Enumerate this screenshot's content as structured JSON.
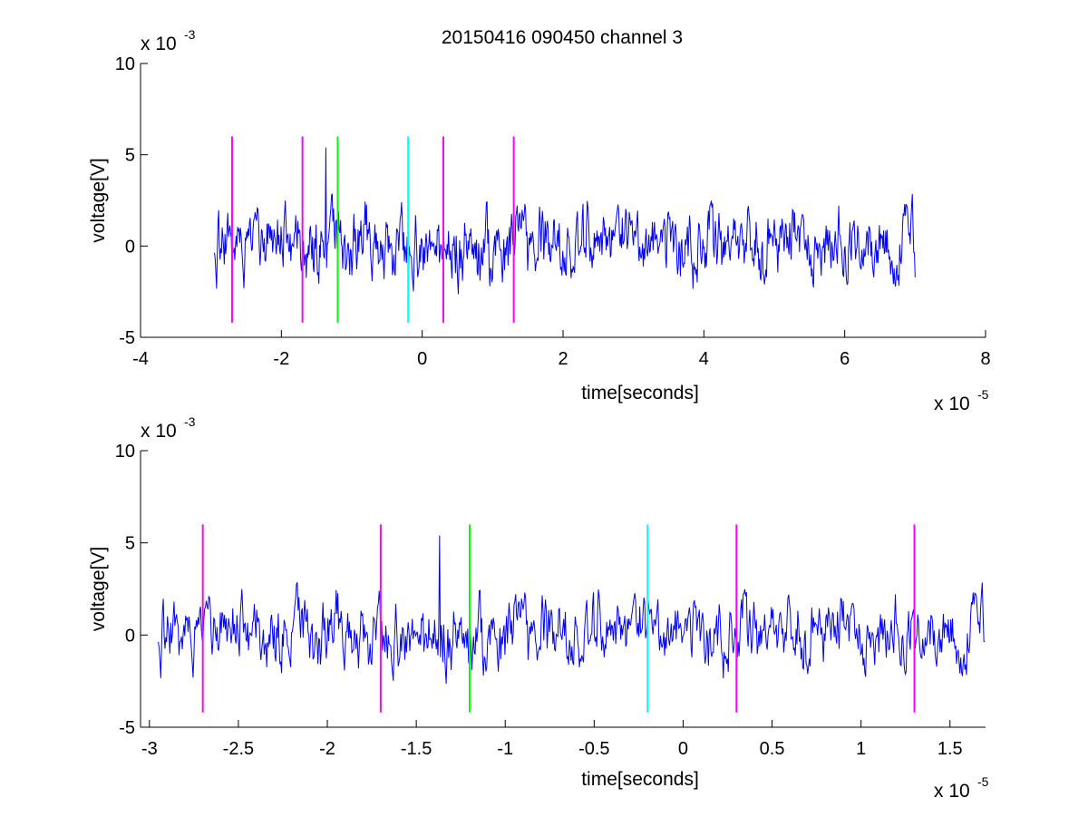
{
  "figure_title": "20150416 090450 channel 3",
  "colors": {
    "trace": "#0000ff",
    "magenta": "#ff00ff",
    "green": "#00ff00",
    "cyan": "#00ffff"
  },
  "chart_data": [
    {
      "type": "line",
      "title": "20150416 090450 channel 3",
      "xlabel": "time[seconds]",
      "ylabel": "voltage[V]",
      "x_exponent": "x 10",
      "x_exponent_power": "-5",
      "y_exponent": "x 10",
      "y_exponent_power": "-3",
      "xlim": [
        -4,
        8
      ],
      "ylim": [
        -5,
        10
      ],
      "xticks": [
        -4,
        -2,
        0,
        2,
        4,
        6,
        8
      ],
      "xtick_labels": [
        "-4",
        "-2",
        "0",
        "2",
        "4",
        "6",
        "8"
      ],
      "yticks": [
        -5,
        0,
        5,
        10
      ],
      "ytick_labels": [
        "-5",
        "0",
        "5",
        "10"
      ],
      "grid": false,
      "signal": {
        "color": "blue",
        "x_start": -2.95,
        "x_end": 7.0,
        "amplitude_range": [
          -3.8,
          5.4
        ],
        "spike_time": -1.37,
        "spike_value": 5.4
      },
      "markers": [
        {
          "x": -2.7,
          "color": "magenta",
          "y_range": [
            -4.2,
            6
          ]
        },
        {
          "x": -1.7,
          "color": "magenta",
          "y_range": [
            -4.2,
            6
          ]
        },
        {
          "x": -1.2,
          "color": "green",
          "y_range": [
            -4.2,
            6
          ]
        },
        {
          "x": -0.2,
          "color": "cyan",
          "y_range": [
            -4.2,
            6
          ]
        },
        {
          "x": 0.3,
          "color": "magenta",
          "y_range": [
            -4.2,
            6
          ]
        },
        {
          "x": 1.3,
          "color": "magenta",
          "y_range": [
            -4.2,
            6
          ]
        }
      ]
    },
    {
      "type": "line",
      "xlabel": "time[seconds]",
      "ylabel": "voltage[V]",
      "x_exponent": "x 10",
      "x_exponent_power": "-5",
      "y_exponent": "x 10",
      "y_exponent_power": "-3",
      "xlim": [
        -3.05,
        1.7
      ],
      "ylim": [
        -5,
        10
      ],
      "xticks": [
        -3,
        -2.5,
        -2,
        -1.5,
        -1,
        -0.5,
        0,
        0.5,
        1,
        1.5
      ],
      "xtick_labels": [
        "-3",
        "-2.5",
        "-2",
        "-1.5",
        "-1",
        "-0.5",
        "0",
        "0.5",
        "1",
        "1.5"
      ],
      "yticks": [
        -5,
        0,
        5,
        10
      ],
      "ytick_labels": [
        "-5",
        "0",
        "5",
        "10"
      ],
      "grid": false,
      "signal": {
        "color": "blue",
        "x_start": -2.95,
        "x_end": 1.7,
        "amplitude_range": [
          -3.8,
          5.4
        ],
        "spike_time": -1.37,
        "spike_value": 5.4
      },
      "markers": [
        {
          "x": -2.7,
          "color": "magenta",
          "y_range": [
            -4.2,
            6
          ]
        },
        {
          "x": -1.7,
          "color": "magenta",
          "y_range": [
            -4.2,
            6
          ]
        },
        {
          "x": -1.2,
          "color": "green",
          "y_range": [
            -4.2,
            6
          ]
        },
        {
          "x": -0.2,
          "color": "cyan",
          "y_range": [
            -4.2,
            6
          ]
        },
        {
          "x": 0.3,
          "color": "magenta",
          "y_range": [
            -4.2,
            6
          ]
        },
        {
          "x": 1.3,
          "color": "magenta",
          "y_range": [
            -4.2,
            6
          ]
        }
      ]
    }
  ]
}
